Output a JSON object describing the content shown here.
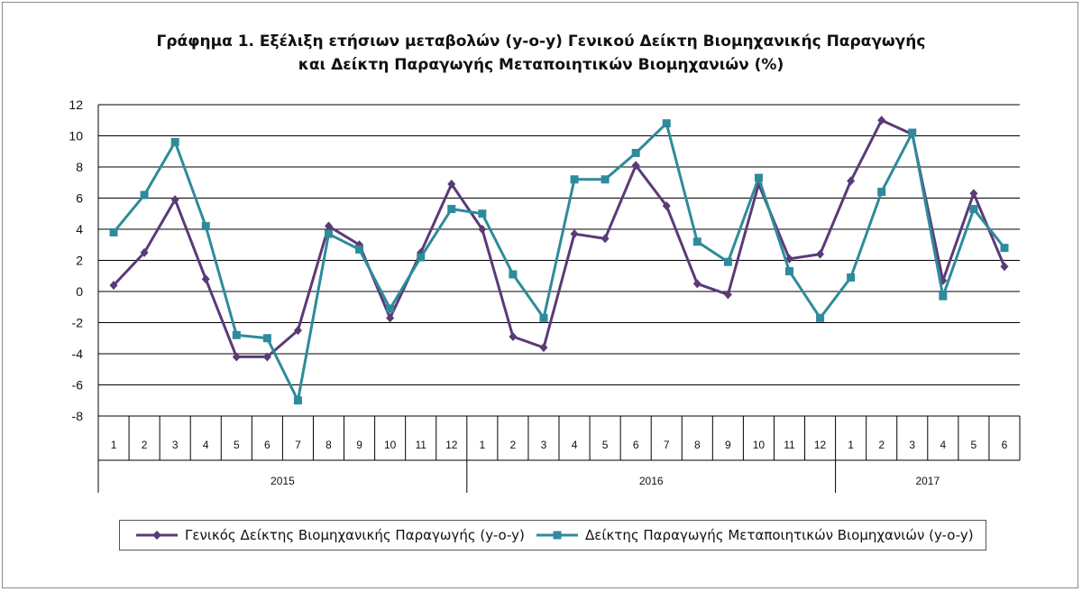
{
  "chart_data": {
    "type": "line",
    "title_line1": "Γράφημα 1. Εξέλιξη ετήσιων μεταβολών (y-o-y) Γενικού Δείκτη Βιομηχανικής Παραγωγής",
    "title_line2": "και Δείκτη Παραγωγής Μεταποιητικών Βιομηχανιών (%)",
    "categories": [
      "1",
      "2",
      "3",
      "4",
      "5",
      "6",
      "7",
      "8",
      "9",
      "10",
      "11",
      "12",
      "1",
      "2",
      "3",
      "4",
      "5",
      "6",
      "7",
      "8",
      "9",
      "10",
      "11",
      "12",
      "1",
      "2",
      "3",
      "4",
      "5",
      "6"
    ],
    "years": [
      {
        "label": "2015",
        "start": 0,
        "count": 12
      },
      {
        "label": "2016",
        "start": 12,
        "count": 12
      },
      {
        "label": "2017",
        "start": 24,
        "count": 6
      }
    ],
    "ylim": [
      -8,
      12
    ],
    "yticks": [
      12,
      10,
      8,
      6,
      4,
      2,
      0,
      -2,
      -4,
      -6,
      -8
    ],
    "ytick_labels": [
      "12",
      "10",
      "8",
      "6",
      "4",
      "2",
      "0",
      "-2",
      "-4",
      "-6",
      "-8"
    ],
    "grid": true,
    "legend_position": "bottom",
    "series": [
      {
        "name": "Γενικός Δείκτης Βιομηχανικής Παραγωγής (y-o-y)",
        "color": "#5b3a78",
        "marker": "diamond",
        "values": [
          0.4,
          2.5,
          5.9,
          0.8,
          -4.2,
          -4.2,
          -2.5,
          4.2,
          3.0,
          -1.7,
          2.5,
          6.9,
          4.0,
          -2.9,
          -3.6,
          3.7,
          3.4,
          8.1,
          5.5,
          0.5,
          -0.2,
          6.9,
          2.1,
          2.4,
          7.1,
          11.0,
          10.1,
          0.7,
          6.3,
          1.6
        ]
      },
      {
        "name": "Δείκτης Παραγωγής Μεταποιητικών Βιομηχανιών (y-o-y)",
        "color": "#2e8b9b",
        "marker": "square",
        "values": [
          3.8,
          6.2,
          9.6,
          4.2,
          -2.8,
          -3.0,
          -7.0,
          3.7,
          2.7,
          -1.1,
          2.2,
          5.3,
          5.0,
          1.1,
          -1.7,
          7.2,
          7.2,
          8.9,
          10.8,
          3.2,
          1.9,
          7.3,
          1.3,
          -1.7,
          0.9,
          6.4,
          10.2,
          -0.3,
          5.3,
          2.8
        ]
      }
    ]
  }
}
